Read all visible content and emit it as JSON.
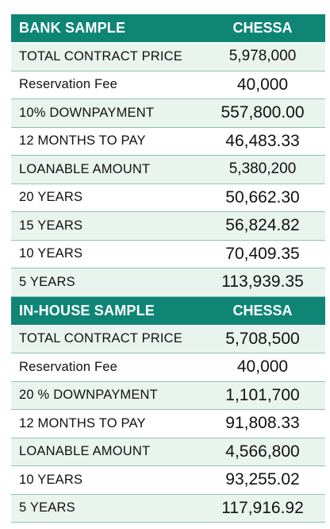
{
  "bank": {
    "header": {
      "label": "BANK SAMPLE",
      "value": "CHESSA"
    },
    "rows": [
      {
        "label": "TOTAL CONTRACT PRICE",
        "value": "5,978,000"
      },
      {
        "label": "Reservation Fee",
        "value": "40,000"
      },
      {
        "label": "10% DOWNPAYMENT",
        "value": "557,800.00"
      },
      {
        "label": "12 MONTHS TO PAY",
        "value": "46,483.33"
      },
      {
        "label": "LOANABLE AMOUNT",
        "value": "5,380,200"
      },
      {
        "label": "20 YEARS",
        "value": "50,662.30"
      },
      {
        "label": "15 YEARS",
        "value": "56,824.82"
      },
      {
        "label": "10 YEARS",
        "value": "70,409.35"
      },
      {
        "label": "5 YEARS",
        "value": "113,939.35"
      }
    ]
  },
  "inhouse": {
    "header": {
      "label": "IN-HOUSE SAMPLE",
      "value": "CHESSA"
    },
    "rows": [
      {
        "label": "TOTAL CONTRACT PRICE",
        "value": "5,708,500"
      },
      {
        "label": "Reservation Fee",
        "value": "40,000"
      },
      {
        "label": "20 % DOWNPAYMENT",
        "value": "1,101,700"
      },
      {
        "label": "12 MONTHS TO PAY",
        "value": "91,808.33"
      },
      {
        "label": "LOANABLE AMOUNT",
        "value": "4,566,800"
      },
      {
        "label": "10 YEARS",
        "value": "93,255.02"
      },
      {
        "label": "5 YEARS",
        "value": "117,916.92"
      }
    ]
  },
  "colors": {
    "header_bg": "#0f8576",
    "row_alt_bg": "#eaf4ef",
    "row_border": "#8ec3ae"
  }
}
